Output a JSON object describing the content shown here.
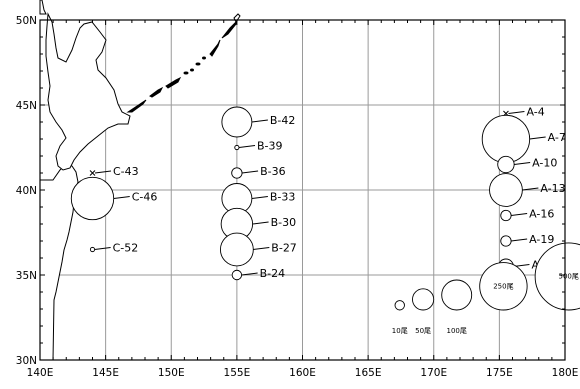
{
  "map": {
    "lon_min": 140,
    "lon_max": 180,
    "lat_min": 30,
    "lat_max": 50,
    "lon_ticks": [
      {
        "v": 140,
        "label": "140E"
      },
      {
        "v": 145,
        "label": "145E"
      },
      {
        "v": 150,
        "label": "150E"
      },
      {
        "v": 155,
        "label": "155E"
      },
      {
        "v": 160,
        "label": "160E"
      },
      {
        "v": 165,
        "label": "165E"
      },
      {
        "v": 170,
        "label": "170E"
      },
      {
        "v": 175,
        "label": "175E"
      },
      {
        "v": 180,
        "label": "180E"
      }
    ],
    "lat_ticks": [
      {
        "v": 30,
        "label": "30N"
      },
      {
        "v": 35,
        "label": "35N"
      },
      {
        "v": 40,
        "label": "40N"
      },
      {
        "v": 45,
        "label": "45N"
      },
      {
        "v": 50,
        "label": "50N"
      }
    ],
    "grid": true,
    "colors": {
      "grid": "#9a9a9a",
      "ink": "#000000",
      "land_fill": "#ffffff"
    }
  },
  "stations": [
    {
      "id": "A-4",
      "lon": 175.5,
      "lat": 44.5,
      "count": 0,
      "marker": "x"
    },
    {
      "id": "A-7",
      "lon": 175.5,
      "lat": 43.0,
      "count": 250
    },
    {
      "id": "A-10",
      "lon": 175.5,
      "lat": 41.5,
      "count": 30
    },
    {
      "id": "A-13",
      "lon": 175.5,
      "lat": 40.0,
      "count": 120
    },
    {
      "id": "A-16",
      "lon": 175.5,
      "lat": 38.5,
      "count": 12
    },
    {
      "id": "A-19",
      "lon": 175.5,
      "lat": 37.0,
      "count": 12
    },
    {
      "id": "A-22",
      "lon": 175.5,
      "lat": 35.5,
      "count": 25
    },
    {
      "id": "B-42",
      "lon": 155.0,
      "lat": 44.0,
      "count": 100
    },
    {
      "id": "B-39",
      "lon": 155.0,
      "lat": 42.5,
      "count": 2
    },
    {
      "id": "B-36",
      "lon": 155.0,
      "lat": 41.0,
      "count": 12
    },
    {
      "id": "B-33",
      "lon": 155.0,
      "lat": 39.5,
      "count": 100
    },
    {
      "id": "B-30",
      "lon": 155.0,
      "lat": 38.0,
      "count": 110
    },
    {
      "id": "B-27",
      "lon": 155.0,
      "lat": 36.5,
      "count": 120
    },
    {
      "id": "B-24",
      "lon": 155.0,
      "lat": 35.0,
      "count": 10
    },
    {
      "id": "C-43",
      "lon": 144.0,
      "lat": 41.0,
      "count": 0,
      "marker": "x"
    },
    {
      "id": "C-46",
      "lon": 144.0,
      "lat": 39.5,
      "count": 200
    },
    {
      "id": "C-52",
      "lon": 144.0,
      "lat": 36.5,
      "count": 2
    }
  ],
  "legend": [
    {
      "value": 10,
      "label": "10尾"
    },
    {
      "value": 50,
      "label": "50尾"
    },
    {
      "value": 100,
      "label": "100尾"
    },
    {
      "value": 250,
      "label": "250尾"
    },
    {
      "value": 500,
      "label": "500尾"
    }
  ]
}
